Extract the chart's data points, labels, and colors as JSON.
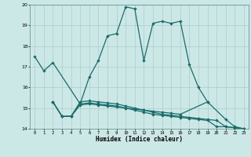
{
  "xlabel": "Humidex (Indice chaleur)",
  "bg_color": "#cce8e6",
  "grid_color": "#aacccc",
  "line_color": "#1a6b6b",
  "line1_x": [
    0,
    1,
    2,
    5,
    6,
    7,
    8,
    9,
    10,
    11,
    12,
    13,
    14,
    15,
    16,
    17,
    18,
    19
  ],
  "line1_y": [
    17.5,
    16.8,
    17.2,
    15.2,
    16.5,
    17.3,
    18.5,
    18.6,
    19.9,
    19.8,
    17.3,
    19.1,
    19.2,
    19.1,
    19.2,
    17.1,
    16.0,
    15.3
  ],
  "line2_x": [
    2,
    3,
    4,
    5,
    6,
    7,
    8,
    9,
    10,
    11,
    12,
    13,
    14,
    15,
    16,
    19,
    21,
    22,
    23
  ],
  "line2_y": [
    15.3,
    14.6,
    14.6,
    15.15,
    15.2,
    15.15,
    15.1,
    15.05,
    15.0,
    14.95,
    14.9,
    14.85,
    14.8,
    14.75,
    14.7,
    15.3,
    14.45,
    14.1,
    14.0
  ],
  "line3_x": [
    2,
    3,
    4,
    5,
    6,
    7,
    8,
    9,
    10,
    11,
    12,
    13,
    14,
    15,
    16,
    17,
    18,
    19,
    20,
    21,
    22,
    23
  ],
  "line3_y": [
    15.3,
    14.6,
    14.6,
    15.2,
    15.25,
    15.2,
    15.15,
    15.1,
    15.0,
    14.9,
    14.8,
    14.7,
    14.65,
    14.6,
    14.55,
    14.5,
    14.45,
    14.4,
    14.1,
    14.1,
    14.05,
    14.0
  ],
  "line4_x": [
    2,
    3,
    4,
    5,
    6,
    7,
    8,
    9,
    10,
    11,
    12,
    13,
    14,
    15,
    16,
    17,
    18,
    19,
    20,
    21,
    22,
    23
  ],
  "line4_y": [
    15.3,
    14.6,
    14.6,
    15.3,
    15.35,
    15.3,
    15.25,
    15.2,
    15.1,
    15.0,
    14.9,
    14.8,
    14.7,
    14.65,
    14.6,
    14.55,
    14.5,
    14.45,
    14.4,
    14.1,
    14.05,
    14.0
  ],
  "ylim": [
    14.0,
    20.0
  ],
  "xlim": [
    -0.5,
    23.5
  ],
  "yticks": [
    14,
    15,
    16,
    17,
    18,
    19,
    20
  ],
  "xticks": [
    0,
    1,
    2,
    3,
    4,
    5,
    6,
    7,
    8,
    9,
    10,
    11,
    12,
    13,
    14,
    15,
    16,
    17,
    18,
    19,
    20,
    21,
    22,
    23
  ]
}
